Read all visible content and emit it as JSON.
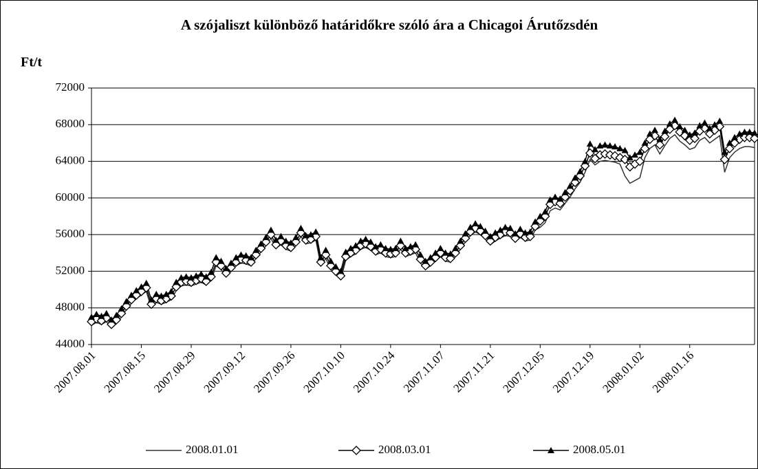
{
  "chart_data": {
    "type": "line",
    "title": "A szójaliszt különböző határidőkre szóló ára a Chicagoi Árutőzsdén",
    "y_label": "Ft/t",
    "categories": [
      "2007.08.01",
      null,
      null,
      null,
      null,
      null,
      null,
      null,
      null,
      null,
      "2007.08.15",
      null,
      null,
      null,
      null,
      null,
      null,
      null,
      null,
      null,
      "2007.08.29",
      null,
      null,
      null,
      null,
      null,
      null,
      null,
      null,
      null,
      "2007.09.12",
      null,
      null,
      null,
      null,
      null,
      null,
      null,
      null,
      null,
      "2007.09.26",
      null,
      null,
      null,
      null,
      null,
      null,
      null,
      null,
      null,
      "2007.10.10",
      null,
      null,
      null,
      null,
      null,
      null,
      null,
      null,
      null,
      "2007.10.24",
      null,
      null,
      null,
      null,
      null,
      null,
      null,
      null,
      null,
      "2007.11.07",
      null,
      null,
      null,
      null,
      null,
      null,
      null,
      null,
      null,
      "2007.11.21",
      null,
      null,
      null,
      null,
      null,
      null,
      null,
      null,
      null,
      "2007.12.05",
      null,
      null,
      null,
      null,
      null,
      null,
      null,
      null,
      null,
      "2007.12.19",
      null,
      null,
      null,
      null,
      null,
      null,
      null,
      null,
      null,
      "2008.01.02",
      null,
      null,
      null,
      null,
      null,
      null,
      null,
      null,
      null,
      "2008.01.16",
      null,
      null,
      null,
      null,
      null,
      null,
      null,
      null,
      null,
      null,
      null,
      null,
      null
    ],
    "ylim": [
      44000,
      72000
    ],
    "yticks": [
      44000,
      48000,
      52000,
      56000,
      60000,
      64000,
      68000,
      72000
    ],
    "grid": true,
    "legend": "bottom",
    "series": [
      {
        "name": "2008.01.01",
        "color": "#333333",
        "marker": "none",
        "values": [
          46100,
          46400,
          46200,
          46500,
          45800,
          46300,
          47000,
          47800,
          48500,
          49000,
          49400,
          49800,
          48000,
          48600,
          48400,
          48600,
          48900,
          49900,
          50400,
          50500,
          50400,
          50600,
          50800,
          50500,
          51000,
          52600,
          52200,
          51400,
          52000,
          52600,
          52900,
          52800,
          52600,
          53400,
          54100,
          54800,
          55600,
          54500,
          54900,
          54400,
          54200,
          54800,
          55800,
          55000,
          55100,
          55400,
          52600,
          53400,
          52200,
          51600,
          51100,
          53200,
          53600,
          53900,
          54400,
          54600,
          54300,
          53800,
          54000,
          53600,
          53500,
          53600,
          54400,
          53600,
          53800,
          54000,
          52900,
          52200,
          52600,
          53100,
          53600,
          53100,
          53000,
          53600,
          54400,
          55200,
          55900,
          56300,
          56000,
          55500,
          54900,
          55300,
          55600,
          55900,
          55800,
          55200,
          55700,
          55300,
          55400,
          56500,
          56800,
          57300,
          58600,
          58900,
          58700,
          59400,
          60100,
          61000,
          61700,
          62800,
          64200,
          63600,
          64000,
          64100,
          64000,
          63900,
          63700,
          62400,
          61600,
          61900,
          62200,
          64400,
          65400,
          65800,
          64800,
          65700,
          66500,
          66900,
          66200,
          65800,
          65300,
          65500,
          66300,
          66600,
          66000,
          66400,
          66800,
          62800,
          64400,
          65000,
          65400,
          65600,
          65600,
          65500
        ]
      },
      {
        "name": "2008.03.01",
        "color": "#000000",
        "marker": "diamond",
        "values": [
          46500,
          46800,
          46600,
          46900,
          46200,
          46700,
          47400,
          48200,
          48900,
          49400,
          49800,
          50200,
          48400,
          49000,
          48800,
          49000,
          49300,
          50300,
          50800,
          50900,
          50800,
          51000,
          51200,
          50900,
          51400,
          53000,
          52600,
          51800,
          52400,
          53000,
          53300,
          53200,
          53000,
          53800,
          54500,
          55200,
          56000,
          54900,
          55300,
          54800,
          54600,
          55200,
          56200,
          55400,
          55500,
          55800,
          53000,
          53800,
          52600,
          52000,
          51500,
          53600,
          54000,
          54300,
          54800,
          55000,
          54700,
          54200,
          54400,
          54000,
          53900,
          54000,
          54800,
          54000,
          54200,
          54400,
          53300,
          52600,
          53000,
          53500,
          54000,
          53500,
          53400,
          54000,
          54800,
          55600,
          56300,
          56700,
          56400,
          55900,
          55300,
          55700,
          56000,
          56300,
          56200,
          55600,
          56100,
          55700,
          55800,
          56900,
          57500,
          58000,
          59300,
          59600,
          59400,
          60100,
          60800,
          61700,
          62400,
          63500,
          64900,
          64300,
          64700,
          64800,
          64700,
          64600,
          64400,
          64200,
          63400,
          63700,
          64000,
          65400,
          66400,
          66800,
          65800,
          66700,
          67500,
          67900,
          67200,
          66800,
          66300,
          66500,
          67300,
          67600,
          67000,
          67400,
          67800,
          64200,
          65400,
          66000,
          66400,
          66600,
          66600,
          66500
        ]
      },
      {
        "name": "2008.05.01",
        "color": "#000000",
        "marker": "triangle",
        "values": [
          47000,
          47300,
          47100,
          47400,
          46700,
          47200,
          47900,
          48700,
          49400,
          49900,
          50300,
          50700,
          48900,
          49500,
          49300,
          49500,
          49800,
          50800,
          51300,
          51400,
          51300,
          51500,
          51700,
          51400,
          51900,
          53500,
          53100,
          52300,
          52900,
          53500,
          53800,
          53700,
          53500,
          54300,
          55000,
          55700,
          56500,
          55400,
          55800,
          55300,
          55100,
          55700,
          56700,
          55900,
          56000,
          56300,
          53500,
          54300,
          53100,
          52500,
          52000,
          54100,
          54500,
          54800,
          55300,
          55500,
          55200,
          54700,
          54900,
          54500,
          54400,
          54500,
          55300,
          54500,
          54700,
          54900,
          53800,
          53100,
          53500,
          54000,
          54500,
          54000,
          53900,
          54500,
          55300,
          56100,
          56800,
          57200,
          56900,
          56400,
          55800,
          56200,
          56500,
          56800,
          56700,
          56100,
          56600,
          56200,
          56300,
          57400,
          58000,
          58500,
          59800,
          60100,
          59900,
          60600,
          61300,
          62200,
          62900,
          64000,
          65900,
          65300,
          65700,
          65800,
          65700,
          65600,
          65400,
          65200,
          64400,
          64700,
          65000,
          66000,
          67000,
          67400,
          66400,
          67300,
          68100,
          68500,
          67800,
          67400,
          66900,
          67100,
          67900,
          68200,
          67600,
          68000,
          68400,
          65000,
          66000,
          66600,
          67000,
          67200,
          67200,
          67100
        ]
      }
    ]
  }
}
